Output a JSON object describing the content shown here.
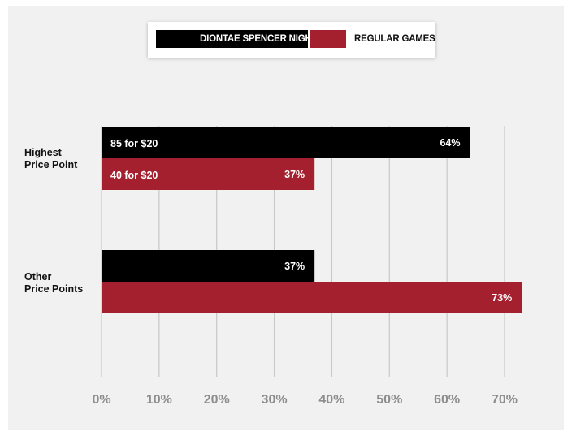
{
  "colors": {
    "background": "#f1f1f1",
    "diontae": "#000000",
    "regular": "#a5202e",
    "grid": "#c8c8c8",
    "tick_text": "#8d8d8d"
  },
  "legend": {
    "items": [
      {
        "label": "DIONTAE SPENCER NIGHT",
        "color": "#000000"
      },
      {
        "label": "REGULAR GAMES",
        "color": "#a5202e"
      }
    ]
  },
  "rows": [
    {
      "label": "Highest\nPrice Point"
    },
    {
      "label": "Other\nPrice Points"
    }
  ],
  "chart_data": {
    "type": "bar",
    "orientation": "horizontal",
    "categories": [
      "Highest Price Point",
      "Other Price Points"
    ],
    "series": [
      {
        "name": "DIONTAE SPENCER NIGHT",
        "values": [
          64,
          37
        ],
        "inner_labels": [
          "85 for $20",
          ""
        ],
        "value_labels": [
          "64%",
          "37%"
        ]
      },
      {
        "name": "REGULAR GAMES",
        "values": [
          37,
          73
        ],
        "inner_labels": [
          "40 for $20",
          ""
        ],
        "value_labels": [
          "37%",
          "73%"
        ]
      }
    ],
    "x_ticks": [
      "0%",
      "10%",
      "20%",
      "30%",
      "40%",
      "50%",
      "60%",
      "70%"
    ],
    "xlim": [
      0,
      70
    ],
    "grid": true,
    "legend_position": "top-center"
  }
}
